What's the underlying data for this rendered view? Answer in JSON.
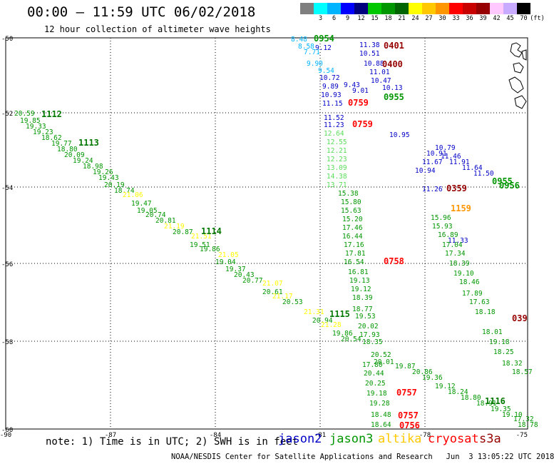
{
  "title": "00:00 – 11:59 UTC 06/02/2018",
  "subtitle": "12 hour collection of altimeter wave heights",
  "scale": {
    "unit": "(ft)",
    "bins": [
      {
        "label": "",
        "color": "#7f7f7f"
      },
      {
        "label": "3",
        "color": "#00ffff"
      },
      {
        "label": "6",
        "color": "#00b4ff"
      },
      {
        "label": "9",
        "color": "#0000ff"
      },
      {
        "label": "12",
        "color": "#00007f"
      },
      {
        "label": "15",
        "color": "#00c800"
      },
      {
        "label": "18",
        "color": "#009600"
      },
      {
        "label": "21",
        "color": "#006400"
      },
      {
        "label": "24",
        "color": "#ffff00"
      },
      {
        "label": "27",
        "color": "#ffc800"
      },
      {
        "label": "30",
        "color": "#ff9600"
      },
      {
        "label": "33",
        "color": "#ff0000"
      },
      {
        "label": "36",
        "color": "#c80000"
      },
      {
        "label": "39",
        "color": "#960000"
      },
      {
        "label": "42",
        "color": "#ffc8ff"
      },
      {
        "label": "45",
        "color": "#c8aaff"
      },
      {
        "label": "70",
        "color": "#000000"
      }
    ]
  },
  "axes": {
    "lat_labels": [
      "-50",
      "-52",
      "-54",
      "-56",
      "-58",
      "-60"
    ],
    "lon_labels": [
      "-90",
      "-87",
      "-84",
      "-81",
      "-78",
      "-75"
    ]
  },
  "tracks": [
    {
      "satellite": "jason3",
      "color": "#009600",
      "times": [
        {
          "text": "1112"
        },
        {
          "text": "1113"
        },
        {
          "text": "1114"
        },
        {
          "text": "1115"
        },
        {
          "text": "1116"
        }
      ],
      "points": [
        {
          "text": "20.59"
        },
        {
          "text": "19.85"
        },
        {
          "text": "19.33"
        },
        {
          "text": "19.23"
        },
        {
          "text": "18.62"
        },
        {
          "text": "19.77"
        },
        {
          "text": "18.80"
        },
        {
          "text": "20.09"
        },
        {
          "text": "19.24"
        },
        {
          "text": "18.98"
        },
        {
          "text": "19.26"
        },
        {
          "text": "19.43"
        },
        {
          "text": "20.19"
        },
        {
          "text": "18.74"
        },
        {
          "text": "19.47"
        },
        {
          "text": "19.05"
        },
        {
          "text": "20.74"
        },
        {
          "text": "20.81"
        },
        {
          "text": "20.87"
        },
        {
          "text": "19.51"
        },
        {
          "text": "19.86"
        },
        {
          "text": "19.04"
        },
        {
          "text": "19.37"
        },
        {
          "text": "20.43"
        },
        {
          "text": "20.77"
        },
        {
          "text": "20.61"
        },
        {
          "text": "20.53"
        },
        {
          "text": "20.94"
        },
        {
          "text": "19.86"
        },
        {
          "text": "20.54"
        },
        {
          "text": "20.52"
        },
        {
          "text": "20.01"
        },
        {
          "text": "19.87"
        },
        {
          "text": "20.86"
        },
        {
          "text": "19.36"
        },
        {
          "text": "19.12"
        },
        {
          "text": "18.24"
        },
        {
          "text": "18.80"
        },
        {
          "text": "18.91"
        },
        {
          "text": "19.35"
        },
        {
          "text": "19.10"
        },
        {
          "text": "17.32"
        },
        {
          "text": "18.78"
        }
      ]
    },
    {
      "satellite": "altika",
      "color": "#ffff00",
      "times": [],
      "points": [
        {
          "text": "21.06"
        },
        {
          "text": "21.19"
        },
        {
          "text": "21.51"
        },
        {
          "text": "21.05"
        },
        {
          "text": "21.07"
        },
        {
          "text": "21.17"
        },
        {
          "text": "21.31"
        },
        {
          "text": "21.28"
        }
      ]
    },
    {
      "satellite": "jason2",
      "color": "#0000c8",
      "times": [],
      "points": [
        {
          "text": "11.38"
        },
        {
          "text": "9.12"
        },
        {
          "text": "10.51"
        },
        {
          "text": "10.88"
        },
        {
          "text": "11.01"
        },
        {
          "text": "10.47"
        },
        {
          "text": "10.72"
        },
        {
          "text": "9.89"
        },
        {
          "text": "9.43"
        },
        {
          "text": "10.13"
        },
        {
          "text": "10.93"
        },
        {
          "text": "9.01"
        },
        {
          "text": "11.15"
        },
        {
          "text": "11.52"
        },
        {
          "text": "11.23"
        },
        {
          "text": "10.95"
        },
        {
          "text": "10.79"
        },
        {
          "text": "10.91"
        },
        {
          "text": "11.46"
        },
        {
          "text": "11.67"
        },
        {
          "text": "11.91"
        },
        {
          "text": "10.94"
        },
        {
          "text": "11.64"
        },
        {
          "text": "11.50"
        },
        {
          "text": "11.26"
        },
        {
          "text": "11.33"
        }
      ]
    },
    {
      "satellite": "jason2-light",
      "color": "#00b4ff",
      "times": [],
      "points": [
        {
          "text": "8.48"
        },
        {
          "text": "8.58"
        },
        {
          "text": "7.71"
        },
        {
          "text": "9.90"
        },
        {
          "text": "9.54"
        }
      ]
    },
    {
      "satellite": "jason3-light",
      "color": "#5adc5a",
      "times": [],
      "points": [
        {
          "text": "12.64"
        },
        {
          "text": "12.55"
        },
        {
          "text": "12.21"
        },
        {
          "text": "12.23"
        },
        {
          "text": "13.09"
        },
        {
          "text": "14.38"
        },
        {
          "text": "13.71"
        }
      ]
    },
    {
      "satellite": "jason3-mid",
      "color": "#009600",
      "times": [],
      "points": [
        {
          "text": "15.38"
        },
        {
          "text": "15.80"
        },
        {
          "text": "15.63"
        },
        {
          "text": "15.20"
        },
        {
          "text": "17.46"
        },
        {
          "text": "16.44"
        },
        {
          "text": "17.16"
        },
        {
          "text": "17.81"
        },
        {
          "text": "16.54"
        },
        {
          "text": "16.81"
        },
        {
          "text": "19.13"
        },
        {
          "text": "19.12"
        },
        {
          "text": "18.39"
        },
        {
          "text": "18.77"
        },
        {
          "text": "19.53"
        },
        {
          "text": "20.02"
        },
        {
          "text": "17.93"
        },
        {
          "text": "18.35"
        },
        {
          "text": "17.80"
        },
        {
          "text": "20.44"
        },
        {
          "text": "20.25"
        },
        {
          "text": "19.18"
        },
        {
          "text": "19.28"
        },
        {
          "text": "18.48"
        },
        {
          "text": "18.64"
        }
      ]
    },
    {
      "satellite": "cryosat",
      "color": "#009600",
      "times": [],
      "points": [
        {
          "text": "15.96"
        },
        {
          "text": "15.93"
        },
        {
          "text": "16.89"
        },
        {
          "text": "17.04"
        },
        {
          "text": "17.34"
        },
        {
          "text": "18.39"
        },
        {
          "text": "19.10"
        },
        {
          "text": "18.46"
        },
        {
          "text": "17.89"
        },
        {
          "text": "17.63"
        },
        {
          "text": "18.18"
        },
        {
          "text": "18.01"
        },
        {
          "text": "19.18"
        },
        {
          "text": "18.25"
        },
        {
          "text": "18.32"
        },
        {
          "text": "18.57"
        }
      ]
    }
  ],
  "time_labels": [
    {
      "text": "0954",
      "color": "#009600"
    },
    {
      "text": "0401",
      "color": "#960000"
    },
    {
      "text": "0400",
      "color": "#960000"
    },
    {
      "text": "0955",
      "color": "#009600"
    },
    {
      "text": "0759",
      "color": "#ff0000"
    },
    {
      "text": "0759",
      "color": "#ff0000"
    },
    {
      "text": "0955",
      "color": "#009600"
    },
    {
      "text": "0956",
      "color": "#009600"
    },
    {
      "text": "0359",
      "color": "#960000"
    },
    {
      "text": "1159",
      "color": "#ff9600"
    },
    {
      "text": "0758",
      "color": "#ff0000"
    },
    {
      "text": "039",
      "color": "#960000"
    },
    {
      "text": "0757",
      "color": "#ff0000"
    },
    {
      "text": "0757",
      "color": "#ff0000"
    },
    {
      "text": "0756",
      "color": "#ff0000"
    }
  ],
  "note": "note: 1) Time is in UTC; 2) SWH is in feet",
  "legend": [
    {
      "label": "jason2",
      "color": "#0000c8"
    },
    {
      "label": "jason3",
      "color": "#009600"
    },
    {
      "label": "altika",
      "color": "#ffc800"
    },
    {
      "label": "cryosat",
      "color": "#ff0000"
    },
    {
      "label": "s3a",
      "color": "#960000"
    }
  ],
  "credit": "NOAA/NESDIS Center for Satellite Applications and Research   Jun  3 13:05:22 UTC 2018"
}
